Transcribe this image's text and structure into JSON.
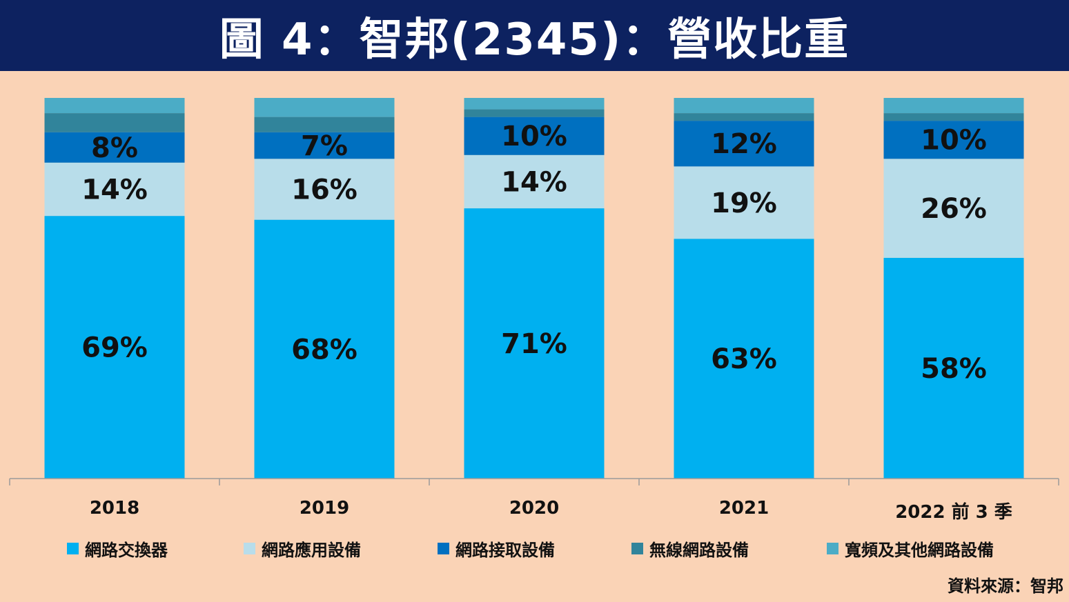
{
  "title": "圖 4：智邦(2345)：營收比重",
  "source": "資料來源：智邦",
  "colors": {
    "header_bg": "#0D2260",
    "background": "#FAD3B6"
  },
  "chart_data": {
    "type": "bar",
    "stacked": true,
    "percent_stacked": true,
    "categories": [
      "2018",
      "2019",
      "2020",
      "2021",
      "2022 前 3 季"
    ],
    "series": [
      {
        "name": "網路交換器",
        "color": "#00B0F0",
        "values": [
          69,
          68,
          71,
          63,
          58
        ],
        "labels": [
          "69%",
          "68%",
          "71%",
          "63%",
          "58%"
        ]
      },
      {
        "name": "網路應用設備",
        "color": "#B8DDEA",
        "values": [
          14,
          16,
          14,
          19,
          26
        ],
        "labels": [
          "14%",
          "16%",
          "14%",
          "19%",
          "26%"
        ]
      },
      {
        "name": "網路接取設備",
        "color": "#0070C0",
        "values": [
          8,
          7,
          10,
          12,
          10
        ],
        "labels": [
          "8%",
          "7%",
          "10%",
          "12%",
          "10%"
        ]
      },
      {
        "name": "無線網路設備",
        "color": "#31849B",
        "values": [
          5,
          4,
          2,
          2,
          2
        ],
        "labels": [
          "",
          "",
          "",
          "",
          ""
        ]
      },
      {
        "name": "寬頻及其他網路設備",
        "color": "#4BACC6",
        "values": [
          4,
          5,
          3,
          4,
          4
        ],
        "labels": [
          "",
          "",
          "",
          "",
          ""
        ]
      }
    ],
    "ylim": [
      0,
      100
    ],
    "grid": false,
    "legend_position": "bottom"
  }
}
